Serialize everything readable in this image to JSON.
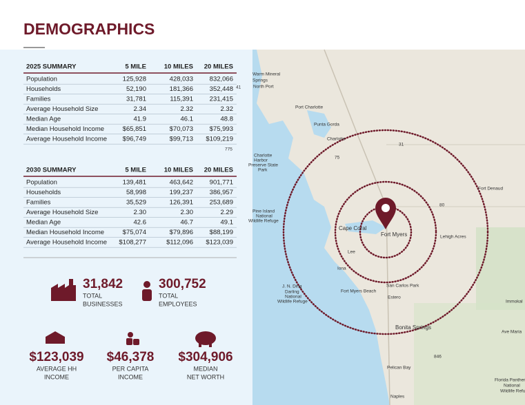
{
  "header": {
    "title": "DEMOGRAPHICS"
  },
  "tables": [
    {
      "headers": [
        "2025 SUMMARY",
        "5 MILE",
        "10 MILES",
        "20 MILES"
      ],
      "rows": [
        [
          "Population",
          "125,928",
          "428,033",
          "832,066"
        ],
        [
          "Households",
          "52,190",
          "181,366",
          "352,448"
        ],
        [
          "Families",
          "31,781",
          "115,391",
          "231,415"
        ],
        [
          "Average Household Size",
          "2.34",
          "2.32",
          "2.32"
        ],
        [
          "Median Age",
          "41.9",
          "46.1",
          "48.8"
        ],
        [
          "Median Household Income",
          "$65,851",
          "$70,073",
          "$75,993"
        ],
        [
          "Average Household Income",
          "$96,749",
          "$99,713",
          "$109,219"
        ]
      ]
    },
    {
      "headers": [
        "2030 SUMMARY",
        "5 MILE",
        "10 MILES",
        "20 MILES"
      ],
      "rows": [
        [
          "Population",
          "139,481",
          "463,642",
          "901,771"
        ],
        [
          "Households",
          "58,998",
          "199,237",
          "386,957"
        ],
        [
          "Families",
          "35,529",
          "126,391",
          "253,689"
        ],
        [
          "Average Household Size",
          "2.30",
          "2.30",
          "2.29"
        ],
        [
          "Median Age",
          "42.6",
          "46.7",
          "49.1"
        ],
        [
          "Median Household Income",
          "$75,074",
          "$79,896",
          "$88,199"
        ],
        [
          "Average Household Income",
          "$108,277",
          "$112,096",
          "$123,039"
        ]
      ]
    }
  ],
  "stats": [
    {
      "value": "31,842",
      "label": [
        "TOTAL",
        "BUSINESSES"
      ]
    },
    {
      "value": "300,752",
      "label": [
        "TOTAL",
        "EMPLOYEES"
      ]
    },
    {
      "value": "$123,039",
      "label": [
        "AVERAGE HH",
        "INCOME"
      ]
    },
    {
      "value": "$46,378",
      "label": [
        "PER CAPITA",
        "INCOME"
      ]
    },
    {
      "value": "$304,906",
      "label": [
        "MEDIAN",
        "NET WORTH"
      ]
    }
  ],
  "map": {
    "labels": [
      "Warm Mineral",
      "Springs",
      "North Port",
      "Port Charlotte",
      "Punta Gorda",
      "Charlotte",
      "Charlotte",
      "Harbor",
      "Preserve State",
      "Park",
      "Pine Island",
      "National",
      "Wildlife Refuge",
      "Cape Coral",
      "Fort Myers",
      "Lehigh Acres",
      "Fort Denaud",
      "Lee",
      "Iona",
      "J. N. Ding",
      "Darling",
      "National",
      "Wildlife Refuge",
      "Fort Myers Beach",
      "San Carlos Park",
      "Estero",
      "Bonita Springs",
      "Immokal",
      "Ave Maria",
      "Pelican Bay",
      "Naples",
      "Florida Panther",
      "National",
      "Wildlife Refuge",
      "31",
      "75",
      "80",
      "846",
      "775",
      "41"
    ]
  }
}
